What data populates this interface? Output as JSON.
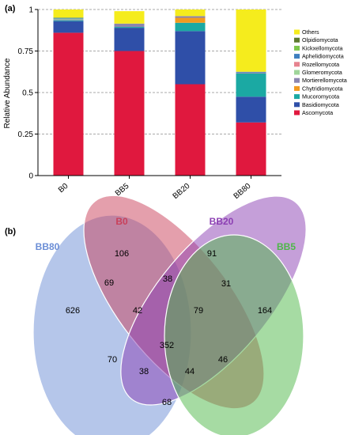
{
  "panel_a_label": "(a)",
  "panel_b_label": "(b)",
  "colors": {
    "Others": "#f5ec1d",
    "Olpidiomycota": "#5d7a2e",
    "Kickxellomycota": "#7dc64a",
    "Aphelidiomycota": "#3f7fbf",
    "Rozellomycota": "#e6838f",
    "Glomeromycota": "#9fd59a",
    "Mortierellomycota": "#8c86b0",
    "Chytridiomycota": "#f29a1f",
    "Mucoromycota": "#1ba9a3",
    "Basidiomycota": "#2f4fa8",
    "Ascomycota": "#e0183e"
  },
  "chart_data": [
    {
      "type": "bar",
      "stacked": true,
      "ylabel": "Relative Abundance",
      "ylim": [
        0,
        1
      ],
      "yticks": [
        "0",
        "0.25",
        "0.5",
        "0.75",
        "1"
      ],
      "grid": "dashed horizontal lines",
      "legend_position": "right",
      "categories": [
        "B0",
        "BB5",
        "BB20",
        "BB80"
      ],
      "series": [
        {
          "name": "Ascomycota",
          "values": [
            0.86,
            0.75,
            0.55,
            0.32
          ]
        },
        {
          "name": "Basidiomycota",
          "values": [
            0.07,
            0.14,
            0.32,
            0.155
          ]
        },
        {
          "name": "Mucoromycota",
          "values": [
            0.005,
            0.005,
            0.05,
            0.14
          ]
        },
        {
          "name": "Chytridiomycota",
          "values": [
            0.0,
            0.0,
            0.03,
            0.0
          ]
        },
        {
          "name": "Mortierellomycota",
          "values": [
            0.005,
            0.02,
            0.01,
            0.005
          ]
        },
        {
          "name": "Glomeromycota",
          "values": [
            0.005,
            0.0,
            0.0,
            0.0
          ]
        },
        {
          "name": "Rozellomycota",
          "values": [
            0.0,
            0.0,
            0.0,
            0.0
          ]
        },
        {
          "name": "Aphelidiomycota",
          "values": [
            0.005,
            0.0,
            0.0,
            0.005
          ]
        },
        {
          "name": "Kickxellomycota",
          "values": [
            0.0,
            0.0,
            0.0,
            0.0
          ]
        },
        {
          "name": "Olpidiomycota",
          "values": [
            0.0,
            0.0,
            0.0,
            0.0
          ]
        },
        {
          "name": "Others",
          "values": [
            0.05,
            0.075,
            0.04,
            0.375
          ]
        }
      ],
      "legend_order": [
        "Others",
        "Olpidiomycota",
        "Kickxellomycota",
        "Aphelidiomycota",
        "Rozellomycota",
        "Glomeromycota",
        "Mortierellomycota",
        "Chytridiomycota",
        "Mucoromycota",
        "Basidiomycota",
        "Ascomycota"
      ]
    },
    {
      "type": "venn",
      "sets": [
        {
          "name": "BB80",
          "color": "#6b8ed6"
        },
        {
          "name": "B0",
          "color": "#c9405a"
        },
        {
          "name": "BB20",
          "color": "#8c3fb3"
        },
        {
          "name": "BB5",
          "color": "#4db848"
        }
      ],
      "label_colors": {
        "BB80": "#6b8ed6",
        "B0": "#c9405a",
        "BB20": "#8c3fb3",
        "BB5": "#4db848"
      },
      "regions": [
        {
          "sets": [
            "BB80"
          ],
          "value": 626
        },
        {
          "sets": [
            "B0"
          ],
          "value": 106
        },
        {
          "sets": [
            "BB20"
          ],
          "value": 91
        },
        {
          "sets": [
            "BB5"
          ],
          "value": 164
        },
        {
          "sets": [
            "BB80",
            "B0"
          ],
          "value": 69
        },
        {
          "sets": [
            "B0",
            "BB20"
          ],
          "value": 38
        },
        {
          "sets": [
            "BB20",
            "BB5"
          ],
          "value": 31
        },
        {
          "sets": [
            "BB80",
            "B0",
            "BB20"
          ],
          "value": 42
        },
        {
          "sets": [
            "B0",
            "BB20",
            "BB5"
          ],
          "value": 79
        },
        {
          "sets": [
            "BB80",
            "BB20"
          ],
          "value": 70
        },
        {
          "sets": [
            "BB80",
            "B0",
            "BB20",
            "BB5"
          ],
          "value": 352
        },
        {
          "sets": [
            "B0",
            "BB5"
          ],
          "value": 46
        },
        {
          "sets": [
            "BB80",
            "BB20",
            "BB5"
          ],
          "value": 38
        },
        {
          "sets": [
            "BB80",
            "B0",
            "BB5"
          ],
          "value": 44
        },
        {
          "sets": [
            "BB80",
            "BB5"
          ],
          "value": 68
        }
      ]
    }
  ]
}
